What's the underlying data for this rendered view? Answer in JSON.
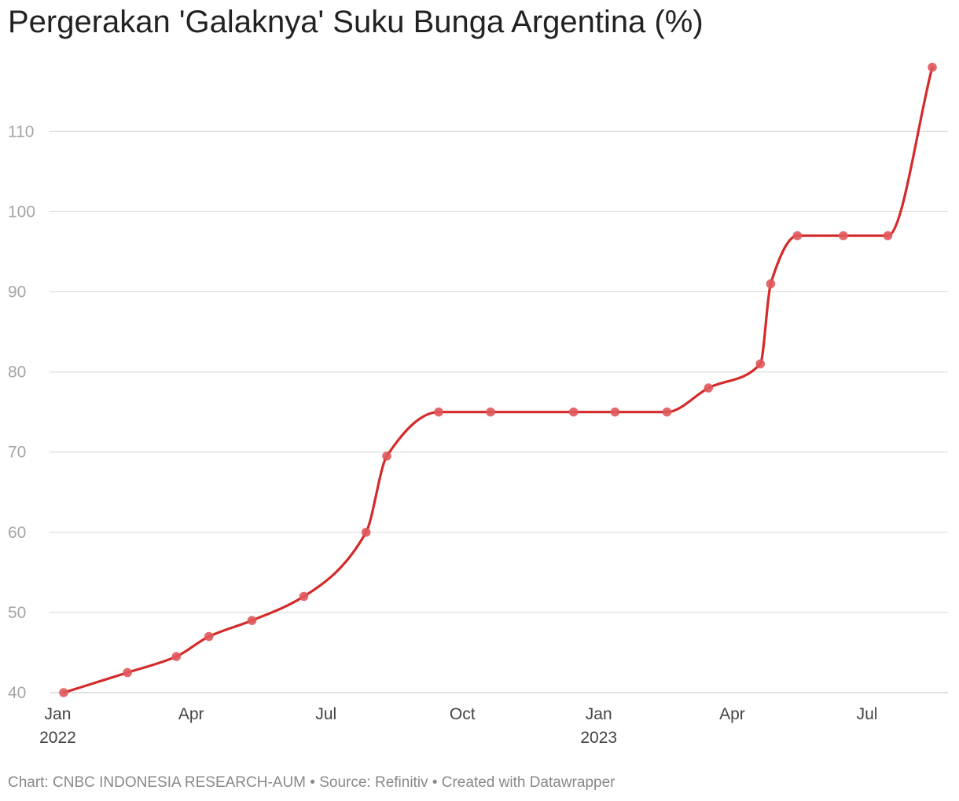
{
  "title": "Pergerakan 'Galaknya' Suku Bunga Argentina (%)",
  "footer": {
    "text": "Chart: CNBC INDONESIA RESEARCH-AUM • Source: Refinitiv • Created with Datawrapper"
  },
  "colors": {
    "line": "#d42a2a",
    "point": "#e0585c",
    "grid": "#dddddd",
    "axis_text": "#a5a5a5"
  },
  "chart_data": {
    "type": "line",
    "title": "Pergerakan 'Galaknya' Suku Bunga Argentina (%)",
    "xlabel": "",
    "ylabel": "",
    "ylim": [
      40,
      118
    ],
    "yticks": [
      40,
      50,
      60,
      70,
      80,
      90,
      100,
      110
    ],
    "xlim": [
      "2022-01-01",
      "2023-08-31"
    ],
    "xticks": [
      {
        "date": "2022-01-01",
        "label": "Jan",
        "year": "2022"
      },
      {
        "date": "2022-04-01",
        "label": "Apr",
        "year": ""
      },
      {
        "date": "2022-07-01",
        "label": "Jul",
        "year": ""
      },
      {
        "date": "2022-10-01",
        "label": "Oct",
        "year": ""
      },
      {
        "date": "2023-01-01",
        "label": "Jan",
        "year": "2023"
      },
      {
        "date": "2023-04-01",
        "label": "Apr",
        "year": ""
      },
      {
        "date": "2023-07-01",
        "label": "Jul",
        "year": ""
      }
    ],
    "grid": true,
    "series": [
      {
        "points": [
          {
            "x": "2022-01-05",
            "y": 40
          },
          {
            "x": "2022-02-17",
            "y": 42.5
          },
          {
            "x": "2022-03-22",
            "y": 44.5
          },
          {
            "x": "2022-04-13",
            "y": 47
          },
          {
            "x": "2022-05-12",
            "y": 49
          },
          {
            "x": "2022-06-16",
            "y": 52
          },
          {
            "x": "2022-07-28",
            "y": 60
          },
          {
            "x": "2022-08-11",
            "y": 69.5
          },
          {
            "x": "2022-09-15",
            "y": 75
          },
          {
            "x": "2022-10-20",
            "y": 75
          },
          {
            "x": "2022-12-15",
            "y": 75
          },
          {
            "x": "2023-01-12",
            "y": 75
          },
          {
            "x": "2023-02-16",
            "y": 75
          },
          {
            "x": "2023-03-16",
            "y": 78
          },
          {
            "x": "2023-04-20",
            "y": 81
          },
          {
            "x": "2023-04-27",
            "y": 91
          },
          {
            "x": "2023-05-15",
            "y": 97
          },
          {
            "x": "2023-06-15",
            "y": 97
          },
          {
            "x": "2023-07-15",
            "y": 97
          },
          {
            "x": "2023-08-14",
            "y": 118
          }
        ]
      }
    ]
  }
}
